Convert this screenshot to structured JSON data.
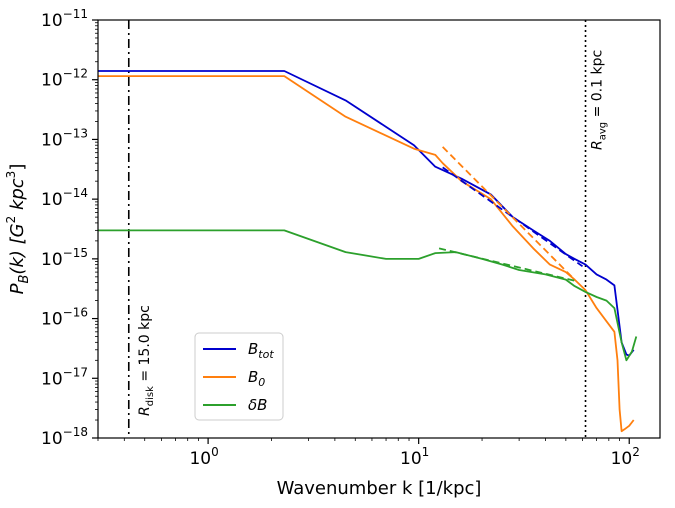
{
  "chart_data": {
    "type": "line",
    "xscale": "log",
    "yscale": "log",
    "xlabel": "Wavenumber k [1/kpc]",
    "ylabel": "P_B(k) [G^2 kpc^3]",
    "xlim": [
      0.3,
      140
    ],
    "ylim": [
      1e-18,
      1e-11
    ],
    "x_ticks": [
      {
        "value": 1,
        "base": "10",
        "exp": "0"
      },
      {
        "value": 10,
        "base": "10",
        "exp": "1"
      },
      {
        "value": 100,
        "base": "10",
        "exp": "2"
      }
    ],
    "y_ticks": [
      {
        "value": 1e-11,
        "base": "10",
        "exp": "−11"
      },
      {
        "value": 1e-12,
        "base": "10",
        "exp": "−12"
      },
      {
        "value": 1e-13,
        "base": "10",
        "exp": "−13"
      },
      {
        "value": 1e-14,
        "base": "10",
        "exp": "−14"
      },
      {
        "value": 1e-15,
        "base": "10",
        "exp": "−15"
      },
      {
        "value": 1e-16,
        "base": "10",
        "exp": "−16"
      },
      {
        "value": 1e-17,
        "base": "10",
        "exp": "−17"
      },
      {
        "value": 1e-18,
        "base": "10",
        "exp": "−18"
      }
    ],
    "series": [
      {
        "name": "B_tot",
        "color": "#0000cd",
        "x": [
          0.3,
          2.3,
          4.5,
          9.5,
          12,
          16,
          22,
          28,
          35,
          42,
          50,
          55,
          62,
          70,
          78,
          85,
          92,
          97,
          100,
          105
        ],
        "y": [
          1.4e-12,
          1.4e-12,
          4.5e-13,
          8e-14,
          3.5e-14,
          2.2e-14,
          1.2e-14,
          5e-15,
          3e-15,
          2e-15,
          1.2e-15,
          1e-15,
          8e-16,
          5.5e-16,
          4.5e-16,
          3.6e-16,
          4e-17,
          2.5e-17,
          2.4e-17,
          3e-17
        ]
      },
      {
        "name": "B_0",
        "color": "#ff7f0e",
        "x": [
          0.3,
          2.3,
          4.5,
          9.5,
          12,
          13,
          16,
          22,
          28,
          35,
          42,
          50,
          55,
          62,
          70,
          78,
          85,
          88,
          90,
          92,
          95,
          100,
          105
        ],
        "y": [
          1.15e-12,
          1.15e-12,
          2.4e-13,
          7e-14,
          5.5e-14,
          4e-14,
          2e-14,
          1e-14,
          3.5e-15,
          1.5e-15,
          8e-16,
          6e-16,
          4.5e-16,
          3e-16,
          1.5e-16,
          9e-17,
          6e-17,
          2e-17,
          3e-18,
          1.3e-18,
          1.4e-18,
          1.6e-18,
          2e-18
        ]
      },
      {
        "name": "δB",
        "color": "#2ca02c",
        "x": [
          0.3,
          2.3,
          4.5,
          7,
          10,
          12,
          15,
          20,
          25,
          30,
          40,
          50,
          55,
          62,
          70,
          78,
          85,
          92,
          97,
          103,
          108
        ],
        "y": [
          3e-15,
          3e-15,
          1.3e-15,
          1e-15,
          1e-15,
          1.25e-15,
          1.3e-15,
          1e-15,
          8e-16,
          6.5e-16,
          5.5e-16,
          4.5e-16,
          3.5e-16,
          2.8e-16,
          2.3e-16,
          2e-16,
          1.5e-16,
          4e-17,
          2e-17,
          2.8e-17,
          5e-17
        ]
      }
    ],
    "fits": [
      {
        "name": "B_tot fit",
        "color": "#0000cd",
        "x": [
          13,
          60
        ],
        "y": [
          3.4e-14,
          7.5e-16
        ]
      },
      {
        "name": "B_0 fit",
        "color": "#ff7f0e",
        "x": [
          13,
          55
        ],
        "y": [
          7.5e-14,
          4.5e-16
        ]
      },
      {
        "name": "δB fit",
        "color": "#2ca02c",
        "x": [
          12.5,
          55
        ],
        "y": [
          1.5e-15,
          4.3e-16
        ]
      }
    ],
    "vlines": [
      {
        "x": 0.42,
        "style": "dashdot",
        "label_main": "R",
        "label_sub": "disk",
        "label_rest": " = 15.0 kpc"
      },
      {
        "x": 62,
        "style": "dotted",
        "label_main": "R",
        "label_sub": "avg",
        "label_rest": " = 0.1 kpc"
      }
    ],
    "legend": {
      "position": "lower-left",
      "entries": [
        {
          "main": "B",
          "sub": "tot",
          "color": "#0000cd"
        },
        {
          "main": "B",
          "sub": "0",
          "color": "#ff7f0e"
        },
        {
          "main": "δB",
          "sub": "",
          "color": "#2ca02c"
        }
      ]
    }
  }
}
